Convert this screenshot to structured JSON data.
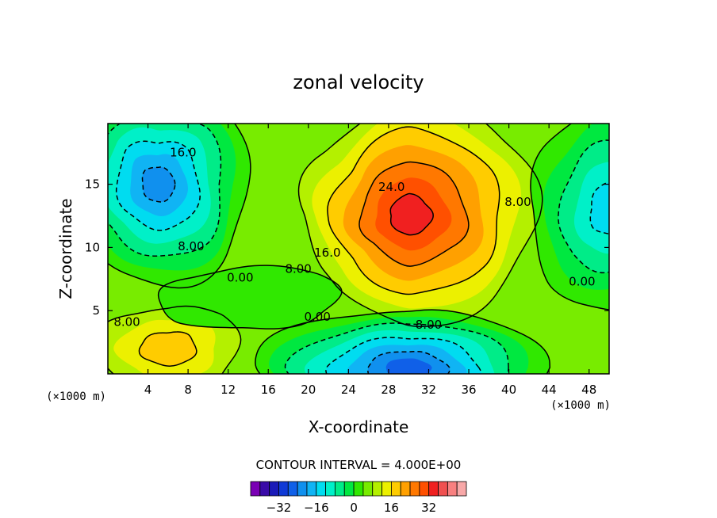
{
  "chart_data": {
    "type": "heatmap",
    "subtype": "filled-contour",
    "title": "zonal velocity",
    "xlabel": "X-coordinate",
    "ylabel": "Z-coordinate",
    "x_unit": "(×1000 m)",
    "y_unit": "(×1000 m)",
    "xlim": [
      0,
      50
    ],
    "ylim": [
      0,
      19.8
    ],
    "xticks": [
      4,
      8,
      12,
      16,
      20,
      24,
      28,
      32,
      36,
      40,
      44,
      48
    ],
    "yticks": [
      5,
      10,
      15
    ],
    "contour_interval_text": "CONTOUR INTERVAL = 4.000E+00",
    "contour_interval": 4,
    "negative_contours": "dashed",
    "features": [
      {
        "name": "upper jet core",
        "x": 31,
        "z": 13,
        "value": 32
      },
      {
        "name": "lower reversed core",
        "x": 31,
        "z": 1,
        "value": -28
      },
      {
        "name": "upper-left negative",
        "x": 4,
        "z": 15,
        "value": -24
      },
      {
        "name": "upper-right negative",
        "x": 49,
        "z": 13,
        "value": -16
      }
    ],
    "contour_labels": [
      {
        "text": "16.0",
        "x": 7.5,
        "z": 17.5
      },
      {
        "text": "8.00",
        "x": 8.3,
        "z": 10.1
      },
      {
        "text": "0.00",
        "x": 13.2,
        "z": 7.6
      },
      {
        "text": "8.00",
        "x": 1.9,
        "z": 4.1
      },
      {
        "text": "16.0",
        "x": 21.9,
        "z": 9.6
      },
      {
        "text": "8.00",
        "x": 19.0,
        "z": 8.3
      },
      {
        "text": "24.0",
        "x": 28.3,
        "z": 14.8
      },
      {
        "text": "0.00",
        "x": 20.9,
        "z": 4.5
      },
      {
        "text": "8.00",
        "x": 32.0,
        "z": 3.9
      },
      {
        "text": "8.00",
        "x": 40.9,
        "z": 13.6
      },
      {
        "text": "0.00",
        "x": 47.3,
        "z": 7.3
      }
    ],
    "colorbar": {
      "levels": [
        -36,
        -32,
        -28,
        -24,
        -20,
        -16,
        -12,
        -8,
        -4,
        0,
        4,
        8,
        12,
        16,
        20,
        24,
        28,
        32,
        36
      ],
      "tick_labels": [
        "-32",
        "-16",
        "0",
        "16",
        "32"
      ],
      "colors": [
        "#7a00b4",
        "#3a0aa8",
        "#1a1ab8",
        "#0f3ad6",
        "#1060e8",
        "#1090ee",
        "#10b4f4",
        "#00dcf0",
        "#00f0c8",
        "#00ec88",
        "#00e840",
        "#30e800",
        "#78ec00",
        "#b4f000",
        "#ecf000",
        "#ffcc00",
        "#ffa000",
        "#ff7800",
        "#ff5000",
        "#f02020",
        "#f05050",
        "#f88080",
        "#f8a8a8"
      ]
    }
  }
}
